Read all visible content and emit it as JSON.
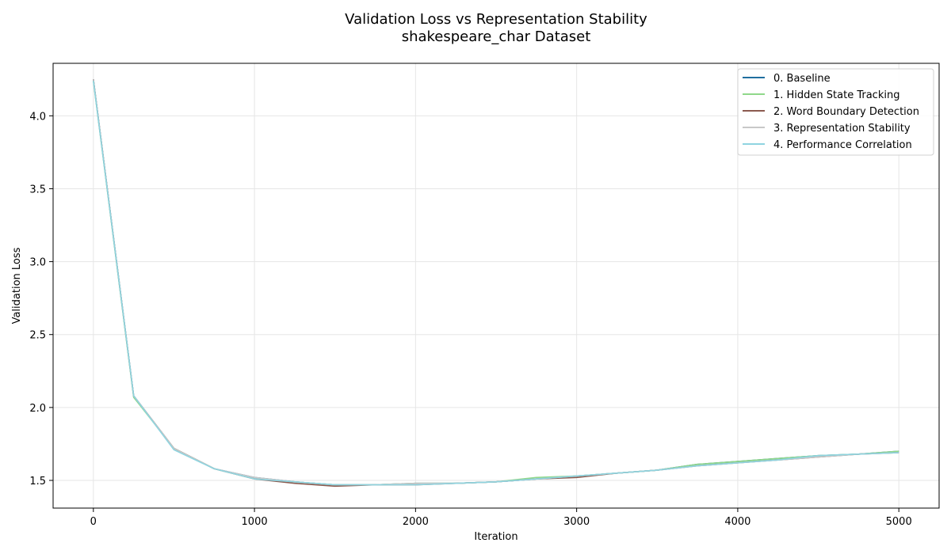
{
  "chart_data": {
    "type": "line",
    "title": "Validation Loss vs Representation Stability",
    "subtitle": "shakespeare_char Dataset",
    "xlabel": "Iteration",
    "ylabel": "Validation Loss",
    "xlim": [
      -250,
      5250
    ],
    "ylim": [
      1.31,
      4.36
    ],
    "xticks": [
      0,
      1000,
      2000,
      3000,
      4000,
      5000
    ],
    "xtick_labels": [
      "0",
      "1000",
      "2000",
      "3000",
      "4000",
      "5000"
    ],
    "yticks": [
      1.5,
      2.0,
      2.5,
      3.0,
      3.5,
      4.0
    ],
    "ytick_labels": [
      "1.5",
      "2.0",
      "2.5",
      "3.0",
      "3.5",
      "4.0"
    ],
    "grid": true,
    "legend_position": "top-right",
    "x": [
      0,
      250,
      500,
      750,
      1000,
      1250,
      1500,
      1750,
      2000,
      2250,
      2500,
      2750,
      3000,
      3250,
      3500,
      3750,
      4000,
      4250,
      4500,
      4750,
      5000
    ],
    "series": [
      {
        "name": "0. Baseline",
        "color": "#1f6f9f",
        "values": [
          4.25,
          2.08,
          1.72,
          1.58,
          1.52,
          1.49,
          1.47,
          1.47,
          1.48,
          1.48,
          1.49,
          1.51,
          1.53,
          1.55,
          1.57,
          1.61,
          1.63,
          1.65,
          1.67,
          1.68,
          1.7
        ]
      },
      {
        "name": "1. Hidden State Tracking",
        "color": "#8fd88a",
        "values": [
          4.24,
          2.07,
          1.72,
          1.58,
          1.51,
          1.49,
          1.47,
          1.47,
          1.48,
          1.48,
          1.49,
          1.52,
          1.53,
          1.55,
          1.57,
          1.61,
          1.63,
          1.65,
          1.67,
          1.68,
          1.7
        ]
      },
      {
        "name": "2. Word Boundary Detection",
        "color": "#8b5a4f",
        "values": [
          4.25,
          2.08,
          1.72,
          1.58,
          1.51,
          1.48,
          1.46,
          1.47,
          1.47,
          1.48,
          1.49,
          1.51,
          1.52,
          1.55,
          1.57,
          1.6,
          1.62,
          1.64,
          1.66,
          1.68,
          1.69
        ]
      },
      {
        "name": "3. Representation Stability",
        "color": "#c8c8c8",
        "values": [
          4.25,
          2.08,
          1.72,
          1.58,
          1.52,
          1.49,
          1.47,
          1.47,
          1.48,
          1.48,
          1.49,
          1.51,
          1.53,
          1.55,
          1.57,
          1.6,
          1.62,
          1.64,
          1.66,
          1.68,
          1.69
        ]
      },
      {
        "name": "4. Performance Correlation",
        "color": "#8fd4e0",
        "values": [
          4.24,
          2.08,
          1.71,
          1.58,
          1.51,
          1.49,
          1.47,
          1.47,
          1.47,
          1.48,
          1.49,
          1.51,
          1.53,
          1.55,
          1.57,
          1.6,
          1.62,
          1.64,
          1.67,
          1.68,
          1.69
        ]
      }
    ]
  }
}
